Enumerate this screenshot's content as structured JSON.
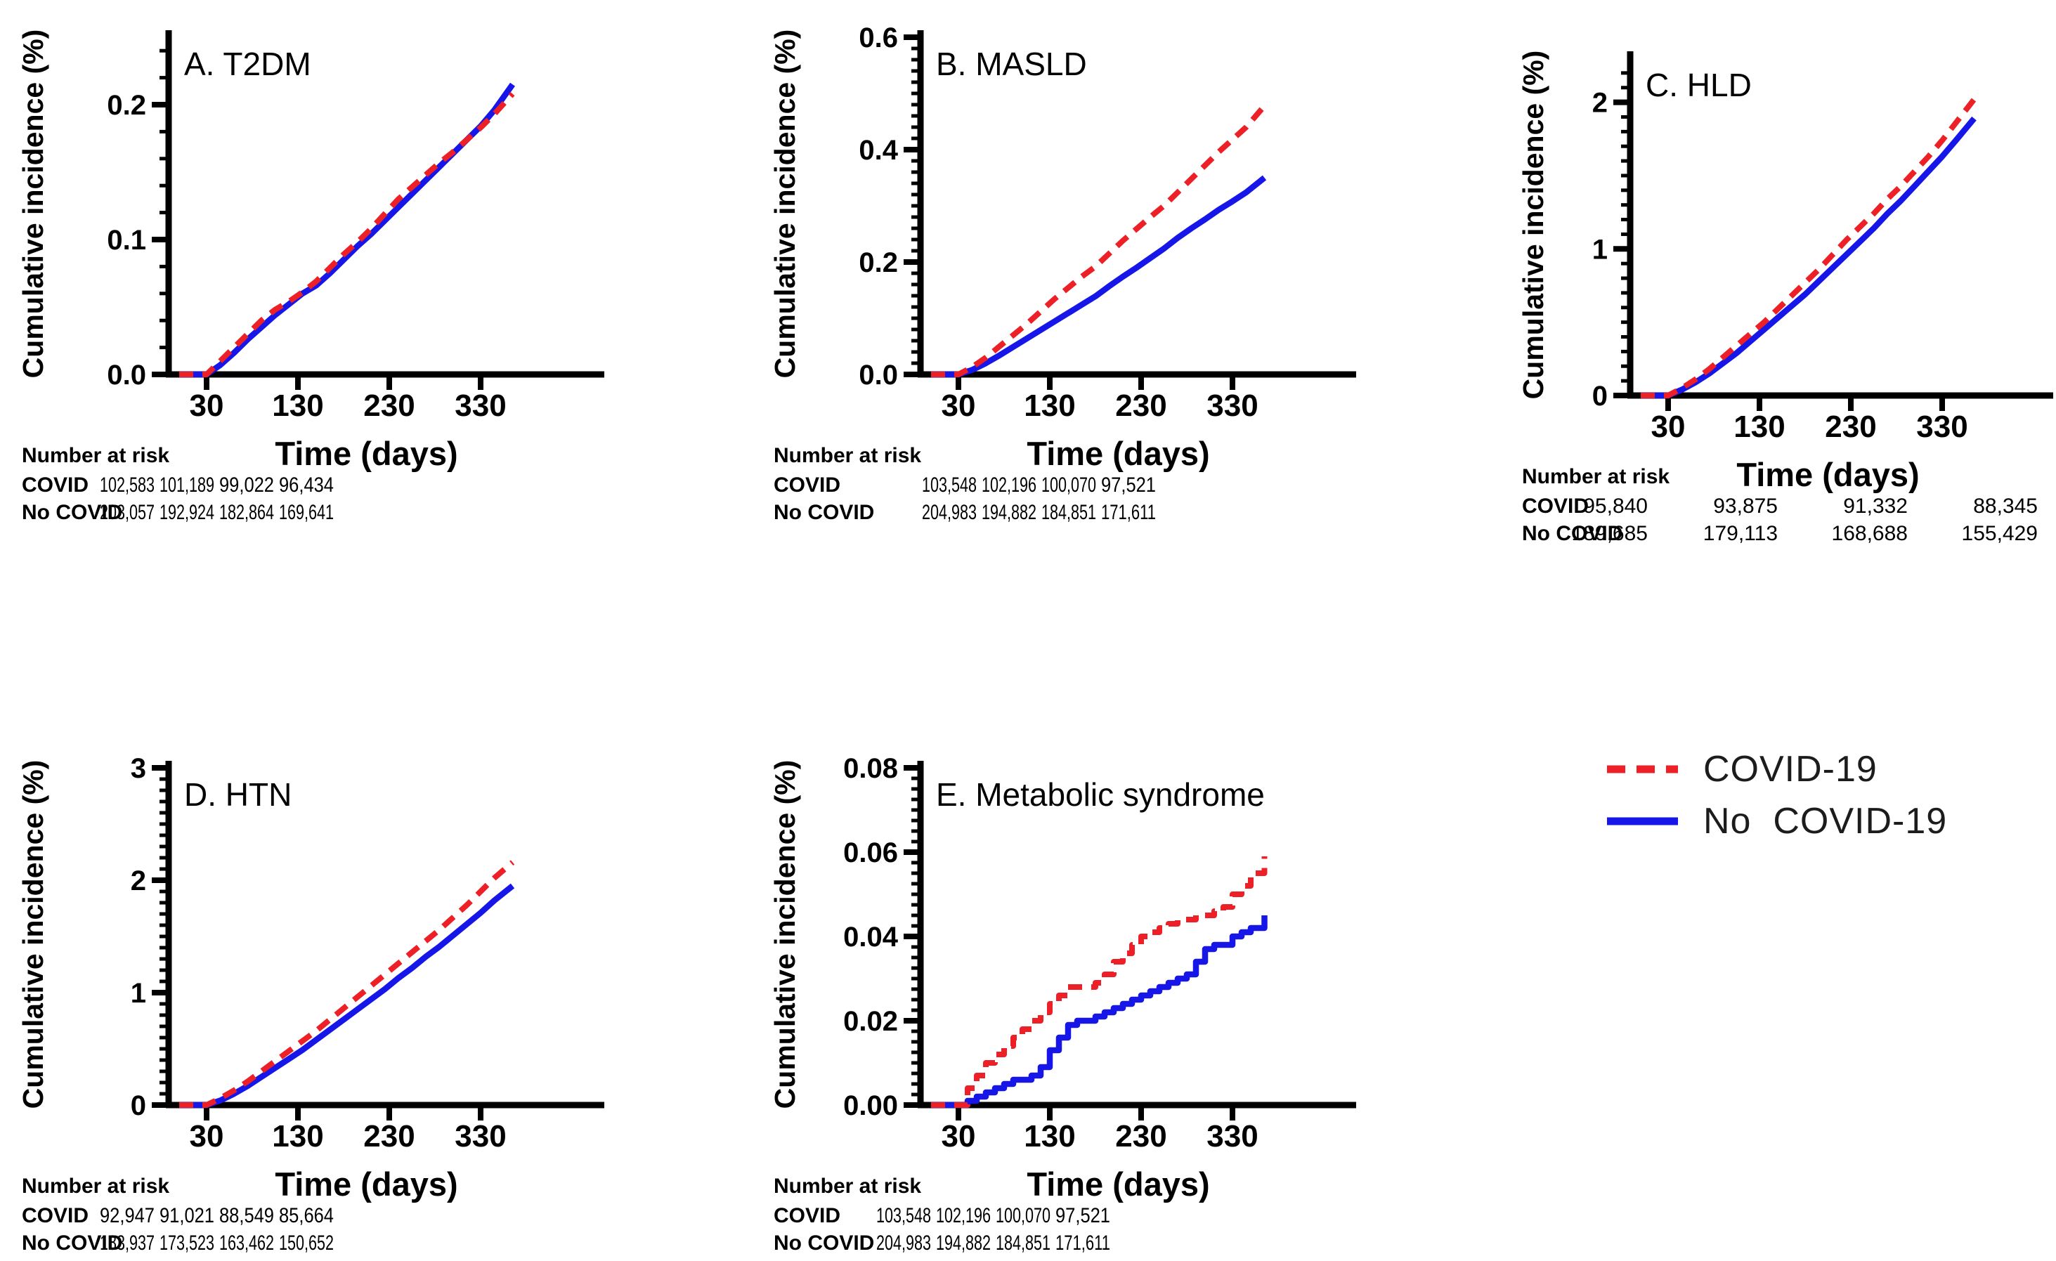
{
  "labels": {
    "y_axis": "Cumulative incidence (%)",
    "x_axis": "Time (days)",
    "number_at_risk": "Number at risk",
    "covid_row": "COVID",
    "no_covid_row": "No COVID"
  },
  "colors": {
    "covid": "#ed2027",
    "no_covid": "#1616e8",
    "axis": "#000000",
    "text": "#000000"
  },
  "legend": [
    {
      "label": "COVID-19",
      "style": "dashed",
      "color": "#ed2027"
    },
    {
      "label": "No  COVID-19",
      "style": "solid",
      "color": "#1616e8"
    }
  ],
  "chart_data": [
    {
      "panel": "A",
      "type": "line",
      "title": "A. T2DM",
      "xlabel": "Time (days)",
      "ylabel": "Cumulative incidence (%)",
      "x_ticks": [
        30,
        130,
        230,
        330
      ],
      "y_ticks": [
        "0.0",
        "0.1",
        "0.2"
      ],
      "y_tick_values": [
        0,
        0.1,
        0.2
      ],
      "ylim": [
        0,
        0.25
      ],
      "y_minor_step": 0.02,
      "step": false,
      "x_days": [
        0,
        30,
        45,
        60,
        75,
        90,
        105,
        120,
        135,
        150,
        165,
        180,
        195,
        210,
        225,
        240,
        255,
        270,
        285,
        300,
        315,
        330,
        345,
        365
      ],
      "series": [
        {
          "name": "COVID-19",
          "values": [
            0,
            0,
            0.01,
            0.02,
            0.03,
            0.04,
            0.048,
            0.054,
            0.061,
            0.069,
            0.079,
            0.089,
            0.098,
            0.108,
            0.119,
            0.13,
            0.139,
            0.148,
            0.157,
            0.165,
            0.174,
            0.183,
            0.193,
            0.208
          ]
        },
        {
          "name": "No COVID-19",
          "values": [
            0,
            0,
            0.007,
            0.016,
            0.026,
            0.035,
            0.044,
            0.052,
            0.06,
            0.066,
            0.075,
            0.085,
            0.095,
            0.104,
            0.114,
            0.124,
            0.134,
            0.144,
            0.154,
            0.164,
            0.174,
            0.184,
            0.196,
            0.215
          ]
        }
      ],
      "number_at_risk": {
        "COVID": [
          "102,583",
          "101,189",
          "99,022",
          "96,434"
        ],
        "No COVID": [
          "203,057",
          "192,924",
          "182,864",
          "169,641"
        ]
      }
    },
    {
      "panel": "B",
      "type": "line",
      "title": "B. MASLD",
      "xlabel": "Time (days)",
      "ylabel": "Cumulative incidence (%)",
      "x_ticks": [
        30,
        130,
        230,
        330
      ],
      "y_ticks": [
        "0.0",
        "0.2",
        "0.4",
        "0.6"
      ],
      "y_tick_values": [
        0,
        0.2,
        0.4,
        0.6
      ],
      "ylim": [
        0,
        0.6
      ],
      "y_minor_step": 0.02,
      "step": false,
      "x_days": [
        0,
        30,
        45,
        60,
        75,
        90,
        105,
        120,
        135,
        150,
        165,
        180,
        195,
        210,
        225,
        240,
        255,
        270,
        285,
        300,
        315,
        330,
        345,
        365
      ],
      "series": [
        {
          "name": "COVID-19",
          "values": [
            0,
            0,
            0.013,
            0.03,
            0.05,
            0.07,
            0.09,
            0.112,
            0.134,
            0.154,
            0.174,
            0.192,
            0.215,
            0.238,
            0.259,
            0.28,
            0.3,
            0.324,
            0.348,
            0.372,
            0.396,
            0.418,
            0.44,
            0.478
          ]
        },
        {
          "name": "No COVID-19",
          "values": [
            0,
            0,
            0.008,
            0.02,
            0.034,
            0.049,
            0.064,
            0.079,
            0.094,
            0.109,
            0.124,
            0.139,
            0.157,
            0.174,
            0.19,
            0.207,
            0.224,
            0.243,
            0.26,
            0.276,
            0.293,
            0.308,
            0.324,
            0.35
          ]
        }
      ],
      "number_at_risk": {
        "COVID": [
          "103,548",
          "102,196",
          "100,070",
          "97,521"
        ],
        "No COVID": [
          "204,983",
          "194,882",
          "184,851",
          "171,611"
        ]
      }
    },
    {
      "panel": "C",
      "type": "line",
      "title": "C. HLD",
      "xlabel": "Time (days)",
      "ylabel": "Cumulative incidence (%)",
      "x_ticks": [
        30,
        130,
        230,
        330
      ],
      "y_ticks": [
        "0",
        "1",
        "2"
      ],
      "y_tick_values": [
        0,
        1,
        2
      ],
      "ylim": [
        0,
        2.3
      ],
      "y_minor_step": 0.1,
      "step": false,
      "x_days": [
        0,
        30,
        45,
        60,
        75,
        90,
        105,
        120,
        135,
        150,
        165,
        180,
        195,
        210,
        225,
        240,
        255,
        270,
        285,
        300,
        315,
        330,
        345,
        365
      ],
      "series": [
        {
          "name": "COVID-19",
          "values": [
            0,
            0,
            0.05,
            0.11,
            0.18,
            0.26,
            0.34,
            0.42,
            0.5,
            0.59,
            0.68,
            0.77,
            0.86,
            0.96,
            1.06,
            1.15,
            1.24,
            1.34,
            1.43,
            1.53,
            1.63,
            1.74,
            1.86,
            2.02
          ]
        },
        {
          "name": "No COVID-19",
          "values": [
            0,
            0,
            0.04,
            0.09,
            0.15,
            0.22,
            0.29,
            0.37,
            0.45,
            0.53,
            0.61,
            0.69,
            0.78,
            0.87,
            0.96,
            1.05,
            1.14,
            1.24,
            1.33,
            1.43,
            1.53,
            1.63,
            1.74,
            1.89
          ]
        }
      ],
      "number_at_risk": {
        "COVID": [
          "95,840",
          "93,875",
          "91,332",
          "88,345"
        ],
        "No COVID": [
          "189,685",
          "179,113",
          "168,688",
          "155,429"
        ]
      }
    },
    {
      "panel": "D",
      "type": "line",
      "title": "D. HTN",
      "xlabel": "Time (days)",
      "ylabel": "Cumulative incidence (%)",
      "x_ticks": [
        30,
        130,
        230,
        330
      ],
      "y_ticks": [
        "0",
        "1",
        "2",
        "3"
      ],
      "y_tick_values": [
        0,
        1,
        2,
        3
      ],
      "ylim": [
        0,
        3
      ],
      "y_minor_step": 0.1,
      "step": false,
      "x_days": [
        0,
        30,
        45,
        60,
        75,
        90,
        105,
        120,
        135,
        150,
        165,
        180,
        195,
        210,
        225,
        240,
        255,
        270,
        285,
        300,
        315,
        330,
        345,
        365
      ],
      "series": [
        {
          "name": "COVID-19",
          "values": [
            0,
            0,
            0.06,
            0.13,
            0.21,
            0.3,
            0.39,
            0.48,
            0.57,
            0.66,
            0.76,
            0.86,
            0.96,
            1.06,
            1.16,
            1.26,
            1.36,
            1.46,
            1.56,
            1.67,
            1.78,
            1.9,
            2.02,
            2.16
          ]
        },
        {
          "name": "No COVID-19",
          "values": [
            0,
            0,
            0.04,
            0.1,
            0.17,
            0.25,
            0.33,
            0.41,
            0.49,
            0.58,
            0.67,
            0.76,
            0.85,
            0.94,
            1.03,
            1.13,
            1.22,
            1.32,
            1.41,
            1.51,
            1.61,
            1.71,
            1.82,
            1.95
          ]
        }
      ],
      "number_at_risk": {
        "COVID": [
          "92,947",
          "91,021",
          "88,549",
          "85,664"
        ],
        "No COVID": [
          "183,937",
          "173,523",
          "163,462",
          "150,652"
        ]
      }
    },
    {
      "panel": "E",
      "type": "line",
      "title": "E. Metabolic syndrome",
      "xlabel": "Time (days)",
      "ylabel": "Cumulative incidence (%)",
      "x_ticks": [
        30,
        130,
        230,
        330
      ],
      "y_ticks": [
        "0.00",
        "0.02",
        "0.04",
        "0.06",
        "0.08"
      ],
      "y_tick_values": [
        0,
        0.02,
        0.04,
        0.06,
        0.08
      ],
      "ylim": [
        0,
        0.08
      ],
      "y_minor_step": 0.0025,
      "step": true,
      "x_days": [
        0,
        30,
        40,
        50,
        60,
        70,
        80,
        90,
        100,
        110,
        120,
        130,
        140,
        150,
        160,
        170,
        180,
        190,
        200,
        210,
        220,
        230,
        240,
        250,
        260,
        270,
        280,
        290,
        300,
        310,
        320,
        330,
        340,
        350,
        365
      ],
      "series": [
        {
          "name": "COVID-19",
          "values": [
            0,
            0,
            0.004,
            0.007,
            0.01,
            0.012,
            0.014,
            0.016,
            0.018,
            0.02,
            0.022,
            0.024,
            0.026,
            0.028,
            0.028,
            0.028,
            0.029,
            0.031,
            0.034,
            0.036,
            0.038,
            0.04,
            0.041,
            0.042,
            0.043,
            0.044,
            0.044,
            0.045,
            0.045,
            0.046,
            0.047,
            0.05,
            0.052,
            0.055,
            0.059
          ]
        },
        {
          "name": "No COVID-19",
          "values": [
            0,
            0,
            0.001,
            0.002,
            0.003,
            0.004,
            0.005,
            0.006,
            0.006,
            0.007,
            0.009,
            0.013,
            0.016,
            0.019,
            0.02,
            0.02,
            0.021,
            0.022,
            0.023,
            0.024,
            0.025,
            0.026,
            0.027,
            0.028,
            0.029,
            0.03,
            0.031,
            0.034,
            0.037,
            0.038,
            0.038,
            0.04,
            0.041,
            0.042,
            0.045
          ]
        }
      ],
      "number_at_risk": {
        "COVID": [
          "103,548",
          "102,196",
          "100,070",
          "97,521"
        ],
        "No COVID": [
          "204,983",
          "194,882",
          "184,851",
          "171,611"
        ]
      }
    }
  ]
}
